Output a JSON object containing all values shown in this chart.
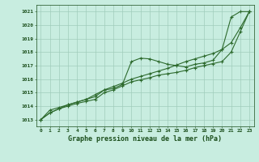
{
  "title": "Graphe pression niveau de la mer (hPa)",
  "xlabel_hours": [
    0,
    1,
    2,
    3,
    4,
    5,
    6,
    7,
    8,
    9,
    10,
    11,
    12,
    13,
    14,
    15,
    16,
    17,
    18,
    19,
    20,
    21,
    22,
    23
  ],
  "ylim": [
    1012.5,
    1021.5
  ],
  "yticks": [
    1013,
    1014,
    1015,
    1016,
    1017,
    1018,
    1019,
    1020,
    1021
  ],
  "line1": [
    1013.0,
    1013.7,
    1013.9,
    1014.1,
    1014.3,
    1014.5,
    1014.7,
    1015.2,
    1015.3,
    1015.6,
    1017.3,
    1017.55,
    1017.5,
    1017.3,
    1017.1,
    1017.0,
    1016.9,
    1017.1,
    1017.2,
    1017.4,
    1018.2,
    1020.6,
    1021.0,
    1021.0
  ],
  "line2": [
    1013.0,
    1013.5,
    1013.8,
    1014.0,
    1014.2,
    1014.35,
    1014.5,
    1015.0,
    1015.2,
    1015.5,
    1015.8,
    1015.95,
    1016.1,
    1016.3,
    1016.4,
    1016.5,
    1016.65,
    1016.85,
    1017.0,
    1017.15,
    1017.3,
    1018.0,
    1019.5,
    1021.0
  ],
  "line3": [
    1013.0,
    1013.5,
    1013.8,
    1014.1,
    1014.3,
    1014.5,
    1014.85,
    1015.2,
    1015.45,
    1015.7,
    1016.0,
    1016.2,
    1016.4,
    1016.6,
    1016.8,
    1017.05,
    1017.3,
    1017.5,
    1017.7,
    1017.9,
    1018.2,
    1018.7,
    1019.8,
    1021.0
  ],
  "line_color": "#2d6a2d",
  "bg_color": "#c8ede0",
  "grid_color": "#a0ccbb",
  "label_color": "#1a4d1a",
  "marker": "+",
  "markersize": 3.5,
  "linewidth": 0.8
}
